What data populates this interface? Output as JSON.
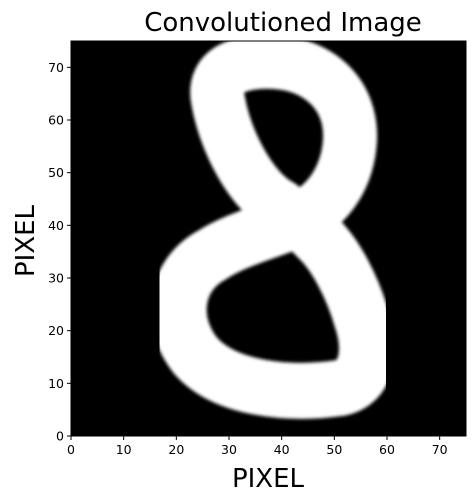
{
  "chart_data": {
    "type": "heatmap",
    "title": "Convolutioned Image",
    "xlabel": "PIXEL",
    "ylabel": "PIXEL",
    "xlim": [
      0,
      75
    ],
    "ylim": [
      0,
      75
    ],
    "xticks": [
      "0",
      "10",
      "20",
      "30",
      "40",
      "50",
      "60",
      "70"
    ],
    "yticks": [
      "0",
      "10",
      "20",
      "30",
      "40",
      "50",
      "60",
      "70"
    ],
    "grid": false,
    "colormap": "gray",
    "background_value": "#000000",
    "foreground_value": "#ffffff",
    "content": "8"
  }
}
